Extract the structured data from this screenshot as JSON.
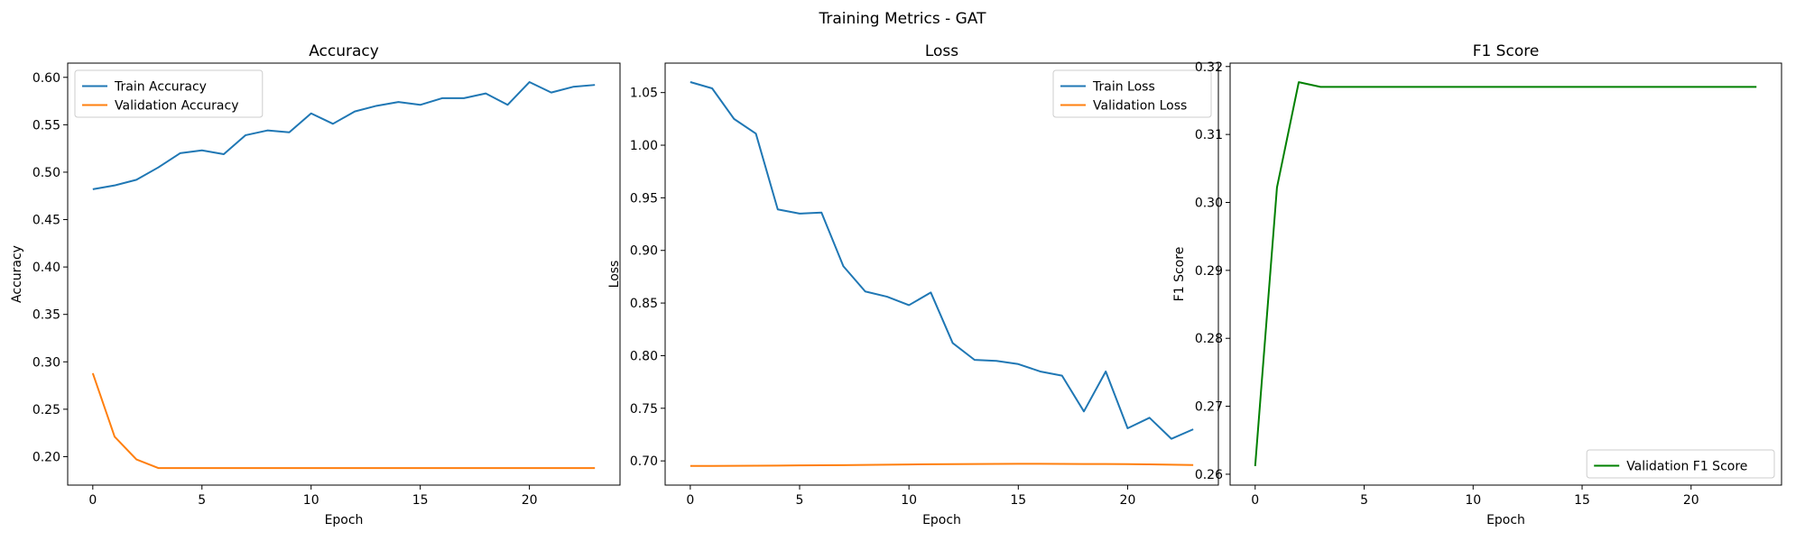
{
  "figure": {
    "suptitle": "Training Metrics - GAT"
  },
  "chart_data": [
    {
      "type": "line",
      "title": "Accuracy",
      "xlabel": "Epoch",
      "ylabel": "Accuracy",
      "xlim": [
        -1.15,
        24.15
      ],
      "ylim": [
        0.17,
        0.615
      ],
      "xticks": [
        0,
        5,
        10,
        15,
        20
      ],
      "yticks": [
        0.2,
        0.25,
        0.3,
        0.35,
        0.4,
        0.45,
        0.5,
        0.55,
        0.6
      ],
      "ytick_decimals": 2,
      "grid": false,
      "legend": "upper-left",
      "x": [
        0,
        1,
        2,
        3,
        4,
        5,
        6,
        7,
        8,
        9,
        10,
        11,
        12,
        13,
        14,
        15,
        16,
        17,
        18,
        19,
        20,
        21,
        22,
        23
      ],
      "series": [
        {
          "name": "Train Accuracy",
          "color": "#1f77b4",
          "values": [
            0.482,
            0.486,
            0.492,
            0.505,
            0.52,
            0.523,
            0.519,
            0.539,
            0.544,
            0.542,
            0.562,
            0.551,
            0.564,
            0.57,
            0.574,
            0.571,
            0.578,
            0.578,
            0.583,
            0.571,
            0.595,
            0.584,
            0.59,
            0.592
          ]
        },
        {
          "name": "Validation Accuracy",
          "color": "#ff7f0e",
          "values": [
            0.288,
            0.221,
            0.197,
            0.188,
            0.188,
            0.188,
            0.188,
            0.188,
            0.188,
            0.188,
            0.188,
            0.188,
            0.188,
            0.188,
            0.188,
            0.188,
            0.188,
            0.188,
            0.188,
            0.188,
            0.188,
            0.188,
            0.188,
            0.188
          ]
        }
      ]
    },
    {
      "type": "line",
      "title": "Loss",
      "xlabel": "Epoch",
      "ylabel": "Loss",
      "xlim": [
        -1.15,
        24.15
      ],
      "ylim": [
        0.677,
        1.078
      ],
      "xticks": [
        0,
        5,
        10,
        15,
        20
      ],
      "yticks": [
        0.7,
        0.75,
        0.8,
        0.85,
        0.9,
        0.95,
        1.0,
        1.05
      ],
      "ytick_decimals": 2,
      "grid": false,
      "legend": "upper-right",
      "x": [
        0,
        1,
        2,
        3,
        4,
        5,
        6,
        7,
        8,
        9,
        10,
        11,
        12,
        13,
        14,
        15,
        16,
        17,
        18,
        19,
        20,
        21,
        22,
        23
      ],
      "series": [
        {
          "name": "Train Loss",
          "color": "#1f77b4",
          "values": [
            1.06,
            1.054,
            1.025,
            1.011,
            0.939,
            0.935,
            0.936,
            0.885,
            0.861,
            0.856,
            0.848,
            0.86,
            0.812,
            0.796,
            0.795,
            0.792,
            0.785,
            0.781,
            0.747,
            0.785,
            0.731,
            0.741,
            0.721,
            0.73
          ]
        },
        {
          "name": "Validation Loss",
          "color": "#ff7f0e",
          "values": [
            0.6952,
            0.6952,
            0.6953,
            0.6954,
            0.6955,
            0.6957,
            0.6958,
            0.696,
            0.6962,
            0.6964,
            0.6966,
            0.6968,
            0.6969,
            0.697,
            0.6971,
            0.6972,
            0.6972,
            0.6971,
            0.697,
            0.697,
            0.6969,
            0.6967,
            0.6964,
            0.6961
          ]
        }
      ]
    },
    {
      "type": "line",
      "title": "F1 Score",
      "xlabel": "Epoch",
      "ylabel": "F1 Score",
      "xlim": [
        -1.15,
        24.15
      ],
      "ylim": [
        0.2584,
        0.3205
      ],
      "xticks": [
        0,
        5,
        10,
        15,
        20
      ],
      "yticks": [
        0.26,
        0.27,
        0.28,
        0.29,
        0.3,
        0.31,
        0.32
      ],
      "ytick_decimals": 2,
      "grid": false,
      "legend": "lower-right",
      "x": [
        0,
        1,
        2,
        3,
        4,
        5,
        6,
        7,
        8,
        9,
        10,
        11,
        12,
        13,
        14,
        15,
        16,
        17,
        18,
        19,
        20,
        21,
        22,
        23
      ],
      "series": [
        {
          "name": "Validation F1 Score",
          "color": "#008000",
          "values": [
            0.2612,
            0.3022,
            0.3177,
            0.317,
            0.317,
            0.317,
            0.317,
            0.317,
            0.317,
            0.317,
            0.317,
            0.317,
            0.317,
            0.317,
            0.317,
            0.317,
            0.317,
            0.317,
            0.317,
            0.317,
            0.317,
            0.317,
            0.317,
            0.317
          ]
        }
      ]
    }
  ]
}
